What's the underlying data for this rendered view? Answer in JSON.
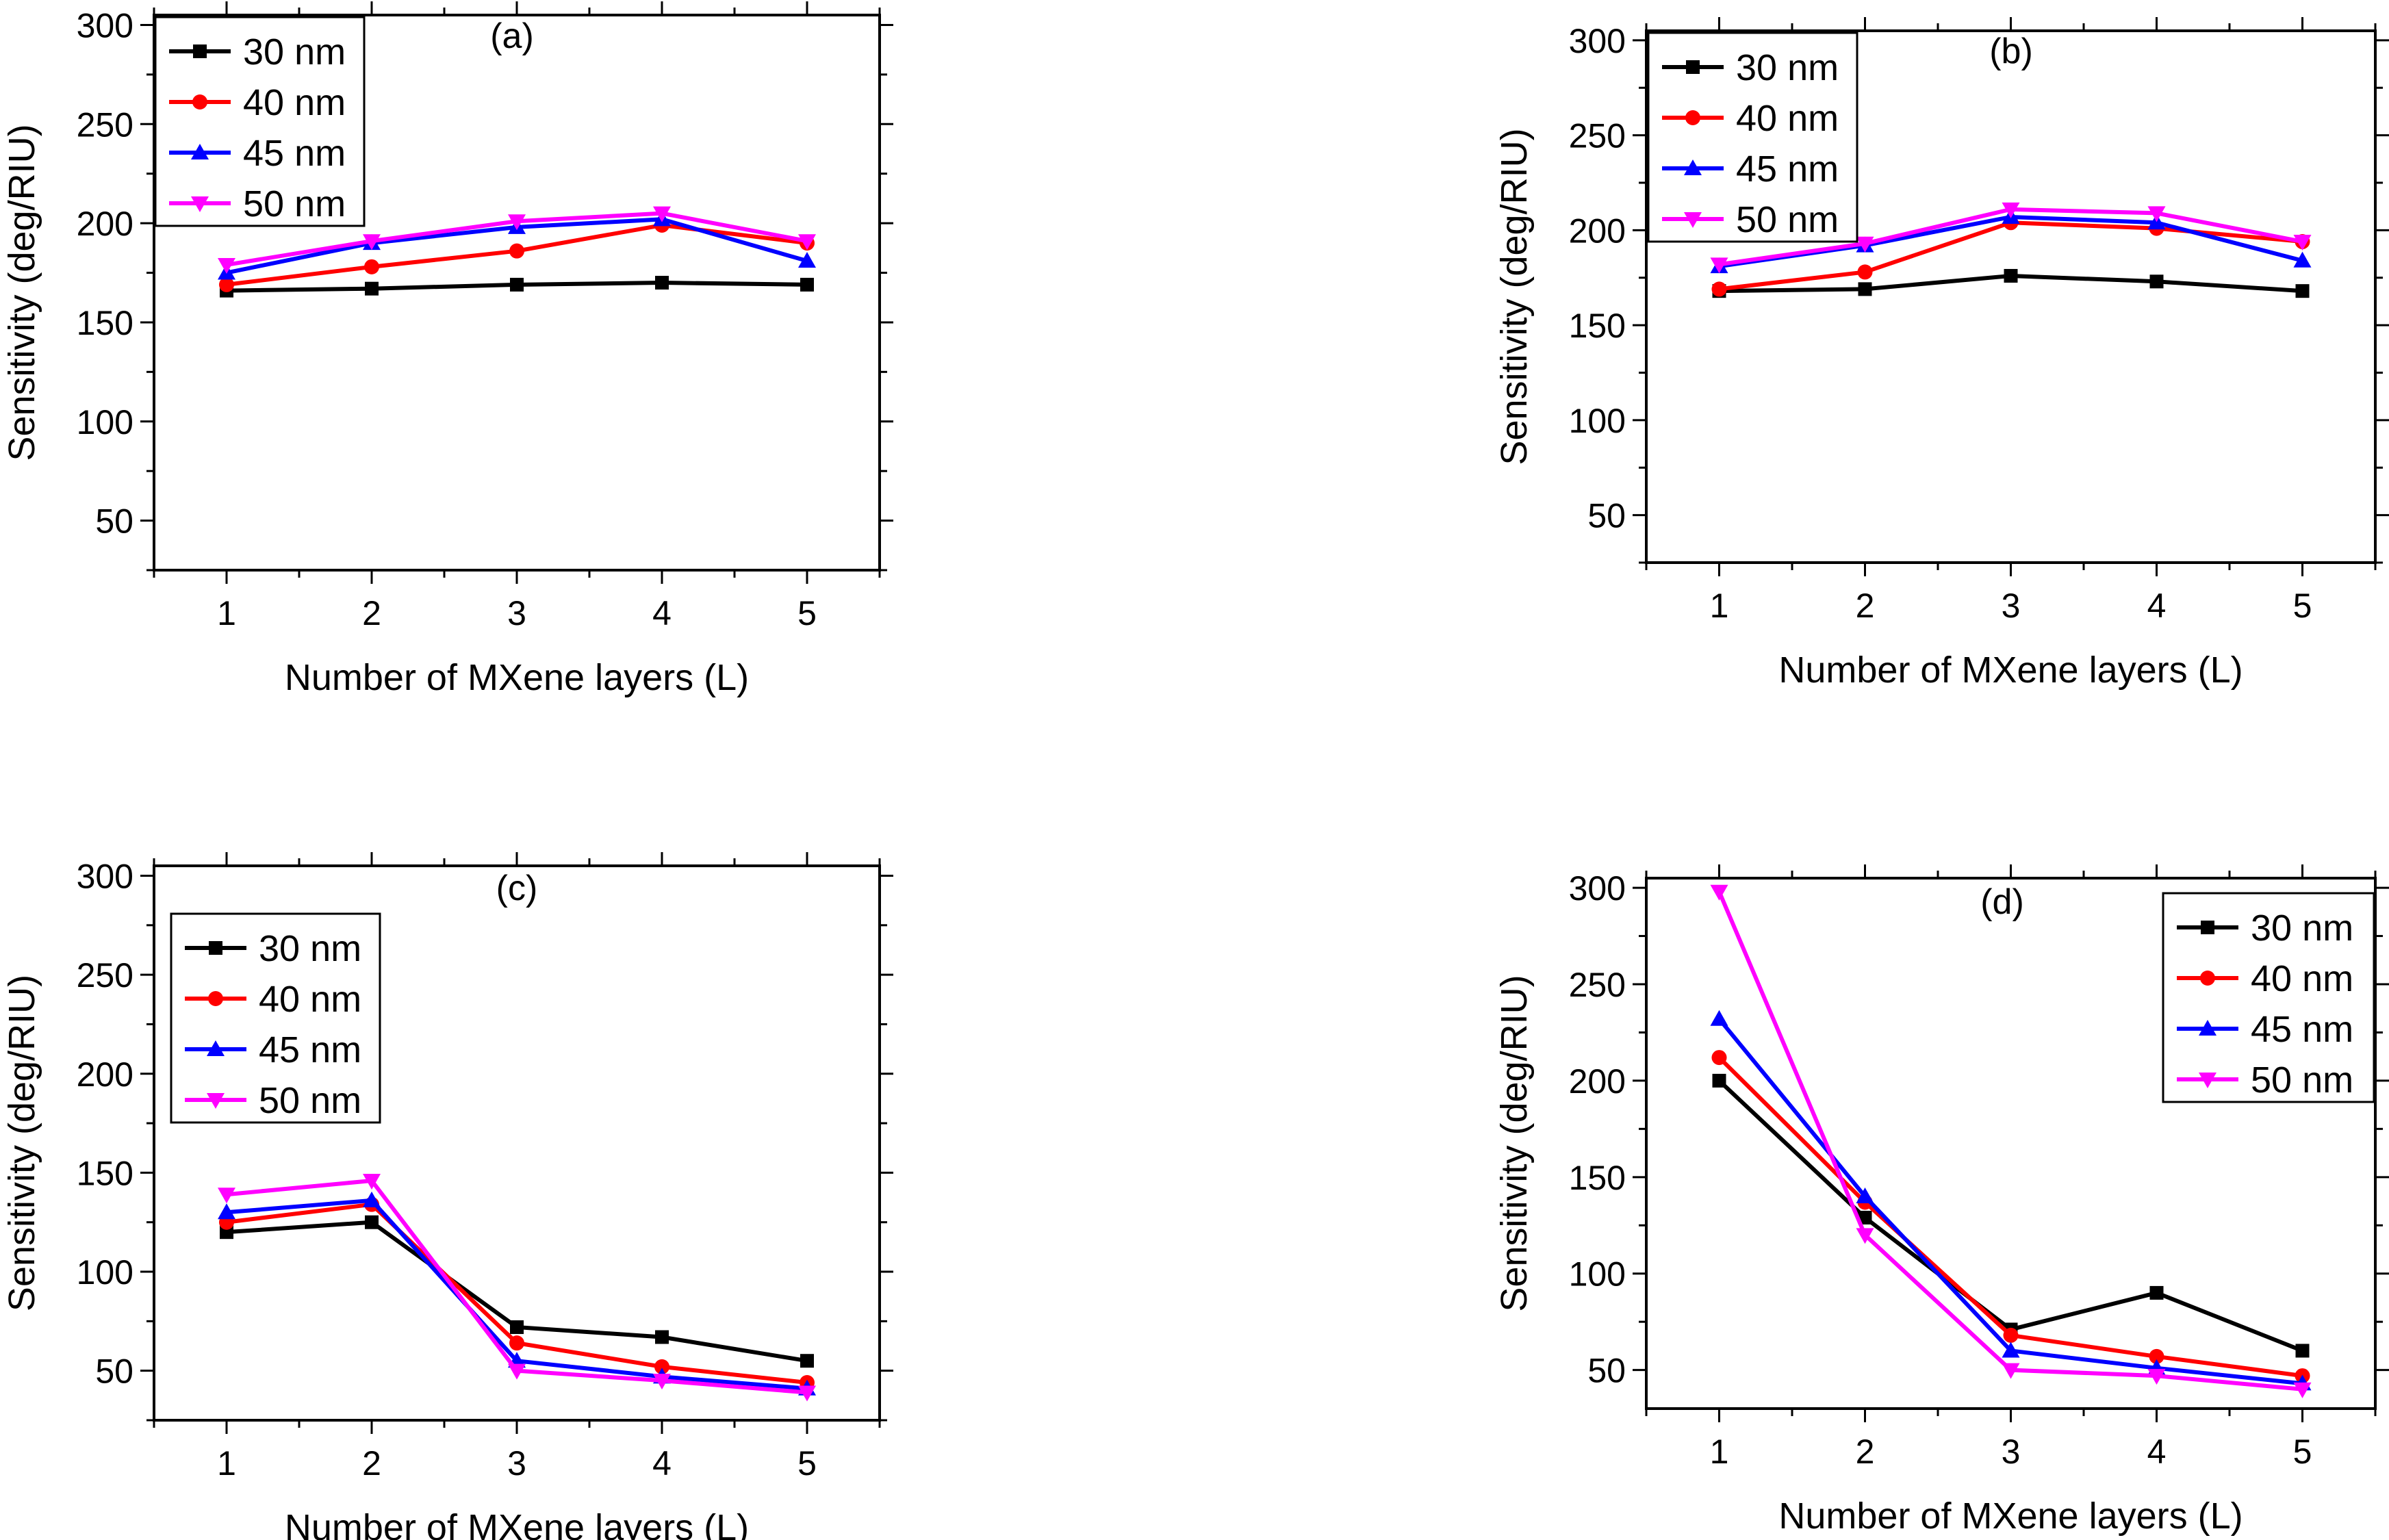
{
  "chart_data": [
    {
      "type": "line",
      "panel": "(a)",
      "xlabel": "Number of MXene layers (L)",
      "ylabel": "Sensitivity (deg/RIU)",
      "x": [
        1,
        2,
        3,
        4,
        5
      ],
      "xlim": [
        0.5,
        5.5
      ],
      "ylim": [
        25,
        305
      ],
      "yticks": [
        50,
        100,
        150,
        200,
        250,
        300
      ],
      "legend_position": "top-left",
      "grid": false,
      "series": [
        {
          "name": "30 nm",
          "color": "#000000",
          "marker": "square",
          "values": [
            166,
            167,
            169,
            170,
            169
          ]
        },
        {
          "name": "40 nm",
          "color": "#ff0000",
          "marker": "circle",
          "values": [
            169,
            178,
            186,
            199,
            190
          ]
        },
        {
          "name": "45 nm",
          "color": "#0000ff",
          "marker": "triangle-up",
          "values": [
            175,
            190,
            198,
            202,
            181
          ]
        },
        {
          "name": "50 nm",
          "color": "#ff00ff",
          "marker": "triangle-down",
          "values": [
            179,
            191,
            201,
            205,
            191
          ]
        }
      ]
    },
    {
      "type": "line",
      "panel": "(b)",
      "xlabel": "Number of MXene layers (L)",
      "ylabel": "Sensitivity (deg/RIU)",
      "x": [
        1,
        2,
        3,
        4,
        5
      ],
      "xlim": [
        0.5,
        5.5
      ],
      "ylim": [
        25,
        305
      ],
      "yticks": [
        50,
        100,
        150,
        200,
        250,
        300
      ],
      "legend_position": "top-left",
      "grid": false,
      "series": [
        {
          "name": "30 nm",
          "color": "#000000",
          "marker": "square",
          "values": [
            168,
            169,
            176,
            173,
            168
          ]
        },
        {
          "name": "40 nm",
          "color": "#ff0000",
          "marker": "circle",
          "values": [
            169,
            178,
            204,
            201,
            194
          ]
        },
        {
          "name": "45 nm",
          "color": "#0000ff",
          "marker": "triangle-up",
          "values": [
            181,
            192,
            207,
            204,
            184
          ]
        },
        {
          "name": "50 nm",
          "color": "#ff00ff",
          "marker": "triangle-down",
          "values": [
            182,
            193,
            211,
            209,
            194
          ]
        }
      ]
    },
    {
      "type": "line",
      "panel": "(c)",
      "xlabel": "Number of MXene layers (L)",
      "ylabel": "Sensitivity (deg/RIU)",
      "x": [
        1,
        2,
        3,
        4,
        5
      ],
      "xlim": [
        0.5,
        5.5
      ],
      "ylim": [
        25,
        305
      ],
      "yticks": [
        50,
        100,
        150,
        200,
        250,
        300
      ],
      "legend_position": "upper-left",
      "grid": false,
      "series": [
        {
          "name": "30 nm",
          "color": "#000000",
          "marker": "square",
          "values": [
            120,
            125,
            72,
            67,
            55
          ]
        },
        {
          "name": "40 nm",
          "color": "#ff0000",
          "marker": "circle",
          "values": [
            125,
            134,
            64,
            52,
            44
          ]
        },
        {
          "name": "45 nm",
          "color": "#0000ff",
          "marker": "triangle-up",
          "values": [
            130,
            136,
            55,
            47,
            41
          ]
        },
        {
          "name": "50 nm",
          "color": "#ff00ff",
          "marker": "triangle-down",
          "values": [
            139,
            146,
            50,
            45,
            39
          ]
        }
      ]
    },
    {
      "type": "line",
      "panel": "(d)",
      "xlabel": "Number of MXene layers (L)",
      "ylabel": "Sensitivity (deg/RIU)",
      "x": [
        1,
        2,
        3,
        4,
        5
      ],
      "xlim": [
        0.5,
        5.5
      ],
      "ylim": [
        30,
        305
      ],
      "yticks": [
        50,
        100,
        150,
        200,
        250,
        300
      ],
      "legend_position": "top-right",
      "grid": false,
      "series": [
        {
          "name": "30 nm",
          "color": "#000000",
          "marker": "square",
          "values": [
            200,
            129,
            71,
            90,
            60
          ]
        },
        {
          "name": "40 nm",
          "color": "#ff0000",
          "marker": "circle",
          "values": [
            212,
            137,
            68,
            57,
            47
          ]
        },
        {
          "name": "45 nm",
          "color": "#0000ff",
          "marker": "triangle-up",
          "values": [
            232,
            140,
            60,
            51,
            43
          ]
        },
        {
          "name": "50 nm",
          "color": "#ff00ff",
          "marker": "triangle-down",
          "values": [
            298,
            120,
            50,
            47,
            40
          ]
        }
      ]
    }
  ]
}
